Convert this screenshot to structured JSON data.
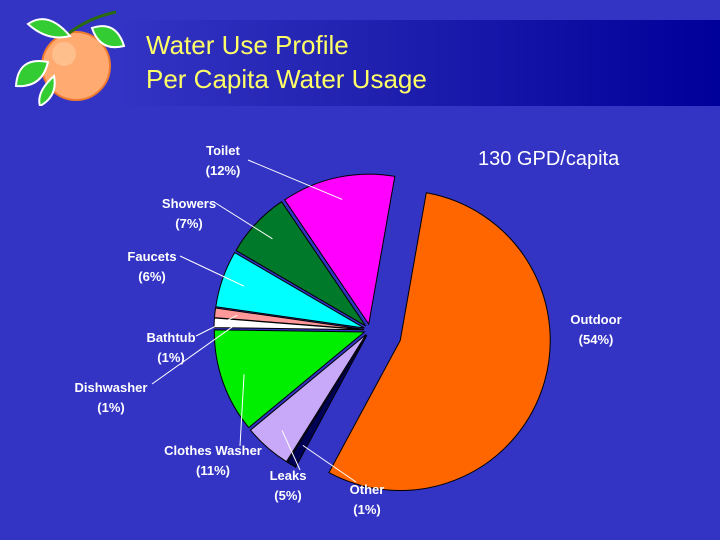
{
  "header": {
    "title_line1": "Water Use Profile",
    "title_line2": "Per Capita Water Usage"
  },
  "annotation": "130 GPD/capita",
  "logo": {
    "icon": "orange-fruit-icon"
  },
  "colors": {
    "background": "#3333c4",
    "title": "#ffff66"
  },
  "chart_data": {
    "type": "pie",
    "title": "",
    "annotation": "130 GPD/capita",
    "slices": [
      {
        "label": "Outdoor",
        "pct_label": "(54%)",
        "value": 54,
        "color": "#ff6600"
      },
      {
        "label": "Other",
        "pct_label": "(1%)",
        "value": 1,
        "color": "#000055"
      },
      {
        "label": "Leaks",
        "pct_label": "(5%)",
        "value": 5,
        "color": "#c8a8f8"
      },
      {
        "label": "Clothes Washer",
        "pct_label": "(11%)",
        "value": 11,
        "color": "#00ee00"
      },
      {
        "label": "Dishwasher",
        "pct_label": "(1%)",
        "value": 1,
        "color": "#ffffff"
      },
      {
        "label": "Bathtub",
        "pct_label": "(1%)",
        "value": 1,
        "color": "#ff9999"
      },
      {
        "label": "Faucets",
        "pct_label": "(6%)",
        "value": 6,
        "color": "#00ffff"
      },
      {
        "label": "Showers",
        "pct_label": "(7%)",
        "value": 7,
        "color": "#007a2a"
      },
      {
        "label": "Toilet",
        "pct_label": "(12%)",
        "value": 12,
        "color": "#ff00ff"
      }
    ]
  }
}
